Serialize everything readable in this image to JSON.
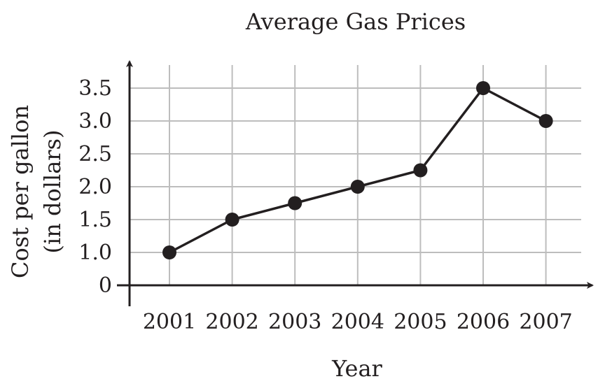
{
  "chart_data": {
    "type": "line",
    "title": "Average Gas Prices",
    "xlabel": "Year",
    "ylabel": [
      "Cost per gallon",
      "(in dollars)"
    ],
    "categories": [
      "2001",
      "2002",
      "2003",
      "2004",
      "2005",
      "2006",
      "2007"
    ],
    "series": [
      {
        "values": [
          1.0,
          1.5,
          1.75,
          2.0,
          2.25,
          3.5,
          3.0
        ]
      }
    ],
    "yticks": [
      "0",
      "1.0",
      "1.5",
      "2.0",
      "2.5",
      "3.0",
      "3.5"
    ],
    "ylim": [
      0,
      3.5
    ],
    "grid": true,
    "colors": {
      "line": "#231f20",
      "grid": "#bdbdbd"
    }
  }
}
